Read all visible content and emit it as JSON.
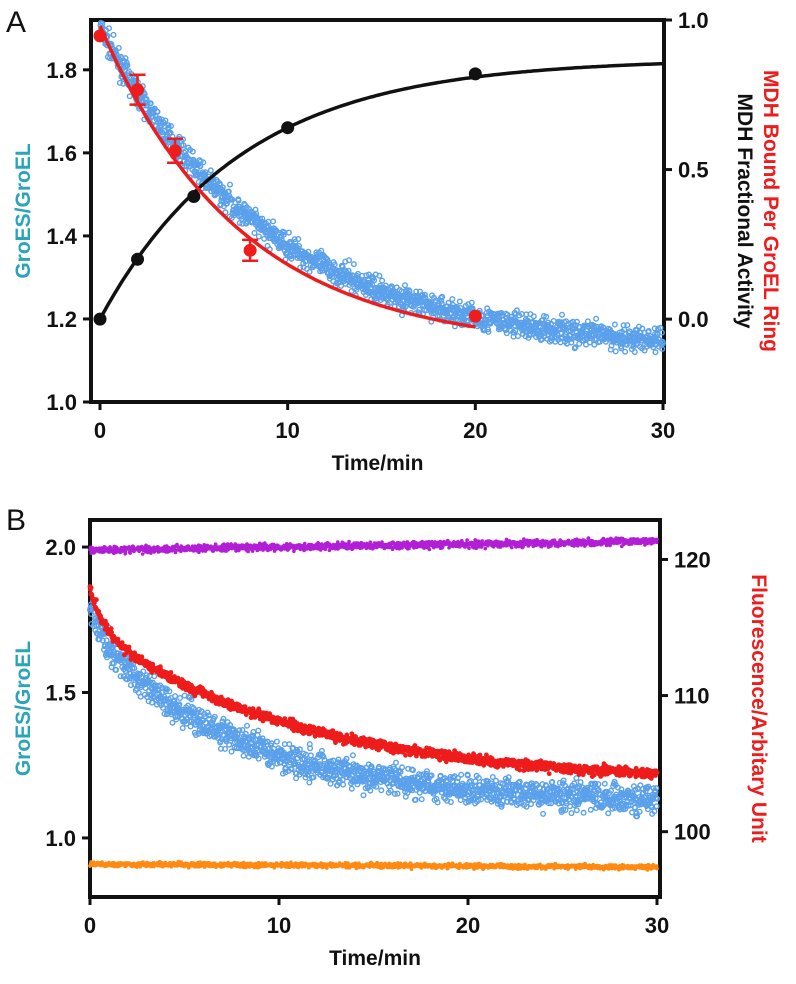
{
  "colors": {
    "teal": "#2aa4b8",
    "blue": "#5aa0ea",
    "red": "#ee1c1c",
    "black": "#111111",
    "purple": "#b21fd6",
    "orange": "#ff8a12"
  },
  "chart_data": [
    {
      "panel": "A",
      "type": "scatter",
      "xlabel": "Time/min",
      "xlim": [
        0,
        30
      ],
      "xticks": [
        "0",
        "10",
        "20",
        "30"
      ],
      "ylabel_left": "GroES/GroEL",
      "ylim_left": [
        1.0,
        1.92
      ],
      "yticks_left": [
        "1.0",
        "1.2",
        "1.4",
        "1.6",
        "1.8"
      ],
      "ylabel_right": [
        "MDH Fractional Activity",
        "MDH Bound Per GroEL Ring"
      ],
      "ylim_right": [
        -0.277,
        1.0
      ],
      "yticks_right": [
        "0.0",
        "0.5",
        "1.0"
      ],
      "series": [
        {
          "name": "GroES/GroEL (scatter)",
          "axis": "left",
          "model": "c+a*exp(-t/tau)+noise",
          "c": 1.12,
          "a": 0.78,
          "tau": 9,
          "noise": 0.03,
          "n": 1500,
          "t_range": [
            0,
            30
          ]
        },
        {
          "name": "MDH Fractional Activity",
          "axis": "right",
          "x": [
            0,
            2,
            5,
            10,
            20
          ],
          "y": [
            0.0,
            0.2,
            0.41,
            0.64,
            0.82
          ],
          "fit": {
            "A": 0.87,
            "k": 0.133,
            "t_range": [
              0,
              30
            ]
          }
        },
        {
          "name": "MDH Bound Per GroEL Ring",
          "axis": "right",
          "x": [
            0,
            2,
            4,
            8,
            20
          ],
          "y": [
            0.947,
            0.767,
            0.563,
            0.23,
            0.01
          ],
          "err": [
            0.0,
            0.05,
            0.04,
            0.035,
            0.0
          ],
          "fit": {
            "a": 1.08,
            "k": 0.134,
            "c": -0.1,
            "t_range": [
              0,
              20
            ]
          }
        }
      ]
    },
    {
      "panel": "B",
      "type": "scatter",
      "xlabel": "Time/min",
      "xlim": [
        0,
        30
      ],
      "xticks": [
        "0",
        "10",
        "20",
        "30"
      ],
      "ylabel_left": "GroES/GroEL",
      "ylim_left": [
        0.797,
        2.093
      ],
      "yticks_left": [
        "1.0",
        "1.5",
        "2.0"
      ],
      "ylabel_right": "Fluorescence/Arbitary Unit",
      "ylim_right": [
        95.2,
        122.9
      ],
      "yticks_right": [
        "100",
        "110",
        "120"
      ],
      "series": [
        {
          "name": "Control high",
          "axis": "left",
          "model": "linear",
          "start": 1.99,
          "end": 2.02,
          "noise": 0.012,
          "n": 1500
        },
        {
          "name": "Control low",
          "axis": "left",
          "model": "linear",
          "start": 0.91,
          "end": 0.9,
          "noise": 0.008,
          "n": 1500
        },
        {
          "name": "GroES/GroEL (scatter)",
          "axis": "left",
          "model": "c+a1*exp(-t/t1)+a2*exp(-t/t2)+noise",
          "c": 1.12,
          "a1": 0.1,
          "t1": 0.7,
          "a2": 0.58,
          "t2": 8,
          "noise": 0.05,
          "n": 1500
        },
        {
          "name": "Fluorescence",
          "axis": "right",
          "model": "c+a1*exp(-t/t1)+a2*exp(-t/t2)+noise",
          "c": 103.5,
          "a1": 3,
          "t1": 0.7,
          "a2": 11.5,
          "t2": 11,
          "noise": 0.35,
          "n": 1500
        }
      ]
    }
  ],
  "labels": {
    "panel_a": "A",
    "panel_b": "B"
  }
}
